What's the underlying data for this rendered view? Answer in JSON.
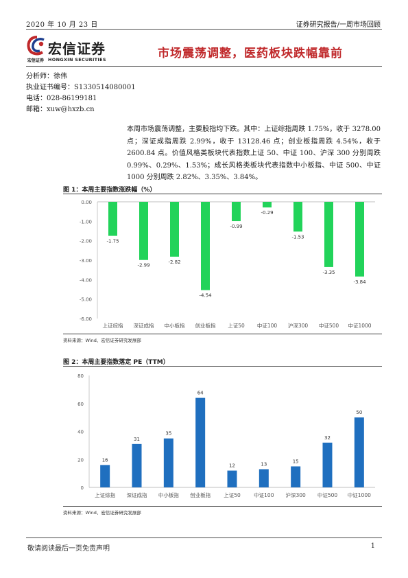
{
  "header": {
    "date": "2020 年 10 月 23 日",
    "right": "证券研究报告/一周市场回顾"
  },
  "logo": {
    "name": "宏信证券",
    "small_cn": "宏信证券",
    "small_en": "HONGXIN SECURITIES"
  },
  "title": "市场震荡调整，医药板块跌幅靠前",
  "analyst": {
    "name": "分析师：徐伟",
    "license": "执业证书编号：S1330514080001",
    "phone": "电话：028-86199181",
    "email": "邮箱：xuw@hxzb.cn"
  },
  "paragraph": "本周市场震荡调整，主要股指均下跌。其中：上证综指周跌 1.75%，收于 3278.00 点；深证成指周跌 2.99%，收于 13128.46 点；创业板指周跌 4.54%，收于 2600.84 点。价值风格类板块代表指数上证 50、中证 100、沪深 300 分别周跌 0.99%、0.29%、1.53%；成长风格类板块代表指数中小板指、中证 500、中证 1000 分别周跌 2.82%、3.35%、3.84%。",
  "figure1": {
    "title": "图 1：本周主要指数涨跌幅（%）",
    "source": "资料来源：Wind、宏信证券研究发展部"
  },
  "figure2": {
    "title": "图 2：本周主要指数落定 PE（TTM）",
    "source": "资料来源：Wind、宏信证券研究发展部"
  },
  "footer": {
    "left": "敬请阅读最后一页免责声明",
    "page": "1"
  },
  "colors": {
    "green": "#22d35a",
    "blue": "#1f6fbf",
    "red": "#c0292b"
  },
  "chart_data": [
    {
      "type": "bar",
      "categories": [
        "上证综指",
        "深证成指",
        "中小板指",
        "创业板指",
        "上证50",
        "中证100",
        "沪深300",
        "中证500",
        "中证1000"
      ],
      "values": [
        -1.75,
        -2.99,
        -2.82,
        -4.54,
        -0.99,
        -0.29,
        -1.53,
        -3.35,
        -3.84
      ],
      "value_labels": [
        "-1.75",
        "-2.99",
        "-2.82",
        "-4.54",
        "-0.99",
        "-0.29",
        "-1.53",
        "-3.35",
        "-3.84"
      ],
      "yticks": [
        "0.00",
        "-1.00",
        "-2.00",
        "-3.00",
        "-4.00",
        "-5.00",
        "-6.00"
      ],
      "ylim": [
        -6,
        0
      ],
      "color": "#22d35a"
    },
    {
      "type": "bar",
      "categories": [
        "上证综指",
        "深证成指",
        "中小板指",
        "创业板指",
        "上证50",
        "中证100",
        "沪深300",
        "中证500",
        "中证1000"
      ],
      "values": [
        16,
        31,
        35,
        64,
        12,
        13,
        15,
        32,
        50
      ],
      "value_labels": [
        "16",
        "31",
        "35",
        "64",
        "12",
        "13",
        "15",
        "32",
        "50"
      ],
      "yticks": [
        "0",
        "20",
        "40",
        "60",
        "80"
      ],
      "ylim": [
        0,
        80
      ],
      "color": "#1f6fbf"
    }
  ]
}
